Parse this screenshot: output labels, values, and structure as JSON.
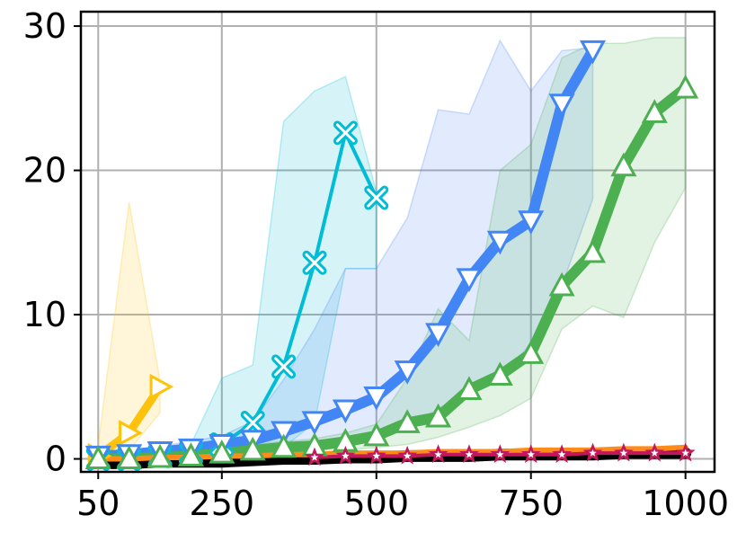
{
  "chart_data": {
    "type": "line",
    "title": "",
    "xlabel": "",
    "ylabel": "",
    "xlim": [
      22,
      1047
    ],
    "ylim": [
      -0.9,
      31
    ],
    "grid": true,
    "xticks": [
      50,
      250,
      500,
      750,
      1000
    ],
    "yticks": [
      0,
      10,
      20,
      30
    ],
    "xtick_labels": [
      "50",
      "250",
      "500",
      "750",
      "1000"
    ],
    "ytick_labels": [
      "0",
      "10",
      "20",
      "30"
    ],
    "series": [
      {
        "color": "#ffc20a",
        "marker": "triangle-right",
        "width": 9,
        "x": [
          50,
          100,
          150
        ],
        "y": [
          0.2,
          1.8,
          5.0
        ],
        "band_upper": [
          1.0,
          17.8,
          5.4
        ],
        "band_lower": [
          0.0,
          0.6,
          3.2
        ]
      },
      {
        "color": "#00bcd4",
        "marker": "x",
        "width": 4,
        "x": [
          50,
          100,
          150,
          200,
          250,
          300,
          350,
          400,
          450,
          500
        ],
        "y": [
          0.0,
          0.0,
          0.2,
          0.4,
          1.0,
          2.5,
          6.4,
          13.6,
          22.6,
          18.1
        ],
        "band_upper": [
          0.1,
          0.3,
          0.8,
          1.0,
          5.6,
          6.5,
          23.4,
          25.5,
          26.5,
          18.5
        ],
        "band_lower": [
          0.0,
          0.0,
          0.0,
          0.0,
          0.1,
          0.5,
          0.8,
          2.5,
          13.2,
          13.2
        ]
      },
      {
        "color": "#4285f4",
        "marker": "triangle-down",
        "width": 12,
        "x": [
          50,
          100,
          150,
          200,
          250,
          300,
          350,
          400,
          450,
          500,
          550,
          600,
          650,
          700,
          750,
          800,
          850
        ],
        "y": [
          0.2,
          0.3,
          0.5,
          0.7,
          1.0,
          1.3,
          1.9,
          2.6,
          3.4,
          4.3,
          6.1,
          8.7,
          12.5,
          15.1,
          16.5,
          24.6,
          28.3
        ],
        "band_upper": [
          0.5,
          0.6,
          0.9,
          1.2,
          1.6,
          2.6,
          5.5,
          9.0,
          13.2,
          13.2,
          16.7,
          24.2,
          23.9,
          29.0,
          25.5,
          28.3,
          28.5
        ],
        "band_lower": [
          0.0,
          0.1,
          0.2,
          0.3,
          0.4,
          0.5,
          0.6,
          0.8,
          1.0,
          1.5,
          2.1,
          3.5,
          4.5,
          5.6,
          8.0,
          12.0,
          18.0
        ]
      },
      {
        "color": "#4caf50",
        "marker": "triangle-up",
        "width": 12,
        "x": [
          50,
          100,
          150,
          200,
          250,
          300,
          350,
          400,
          450,
          500,
          550,
          600,
          650,
          700,
          750,
          800,
          850,
          900,
          950,
          1000
        ],
        "y": [
          0.0,
          0.0,
          0.1,
          0.2,
          0.4,
          0.6,
          0.8,
          0.9,
          1.2,
          1.6,
          2.5,
          2.9,
          4.8,
          5.8,
          7.3,
          12.0,
          14.3,
          20.3,
          24.0,
          25.7
        ],
        "band_upper": [
          0.1,
          0.2,
          0.3,
          0.5,
          0.8,
          1.0,
          1.2,
          1.4,
          1.8,
          2.4,
          5.6,
          10.4,
          8.2,
          20.0,
          21.8,
          27.8,
          28.8,
          28.8,
          29.2,
          29.2
        ],
        "band_lower": [
          0.0,
          0.0,
          0.0,
          0.0,
          0.1,
          0.2,
          0.3,
          0.4,
          0.6,
          0.8,
          1.0,
          1.5,
          2.2,
          3.0,
          4.2,
          9.0,
          10.6,
          9.8,
          15.0,
          18.8
        ]
      },
      {
        "color": "#000000",
        "marker": "none",
        "width": 13,
        "x": [
          50,
          100,
          150,
          200,
          250,
          300,
          350,
          400,
          450,
          500,
          550,
          600,
          650,
          700,
          750,
          800,
          850,
          900,
          950,
          1000
        ],
        "y": [
          -0.3,
          -0.3,
          -0.2,
          -0.2,
          -0.2,
          -0.1,
          0.0,
          0.0,
          0.1,
          0.1,
          0.2,
          0.2,
          0.2,
          0.3,
          0.3,
          0.3,
          0.3,
          0.4,
          0.4,
          0.4
        ],
        "band_upper": [],
        "band_lower": []
      },
      {
        "color": "#ff8c1a",
        "marker": "none",
        "width": 6,
        "x": [
          50,
          100,
          150,
          200,
          250,
          300,
          350,
          400,
          450,
          500,
          550,
          600,
          650,
          700,
          750,
          800,
          850,
          900,
          950,
          1000
        ],
        "y": [
          0.0,
          0.0,
          0.1,
          0.1,
          0.2,
          0.2,
          0.3,
          0.3,
          0.4,
          0.4,
          0.4,
          0.5,
          0.5,
          0.5,
          0.6,
          0.6,
          0.6,
          0.7,
          0.7,
          0.8
        ],
        "band_upper": [],
        "band_lower": []
      },
      {
        "color": "#c2185b",
        "marker": "star",
        "width": 4,
        "x": [
          400,
          450,
          500,
          550,
          600,
          650,
          700,
          750,
          800,
          850,
          900,
          950,
          1000
        ],
        "y": [
          0.1,
          0.2,
          0.2,
          0.2,
          0.3,
          0.3,
          0.3,
          0.3,
          0.3,
          0.4,
          0.4,
          0.4,
          0.4
        ],
        "band_upper": [],
        "band_lower": []
      }
    ]
  }
}
